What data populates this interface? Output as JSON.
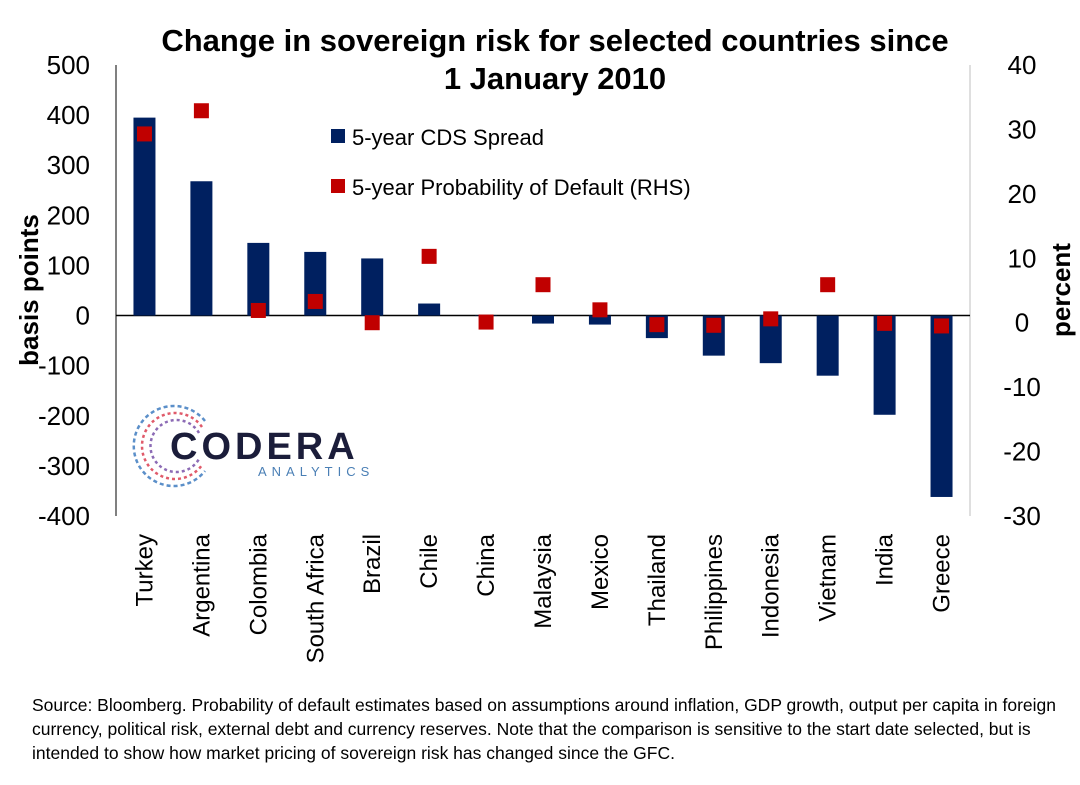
{
  "chart_data": {
    "type": "bar",
    "title": "Change in sovereign risk for selected countries since 1 January 2010",
    "categories": [
      "Turkey",
      "Argentina",
      "Colombia",
      "South Africa",
      "Brazil",
      "Chile",
      "China",
      "Malaysia",
      "Mexico",
      "Thailand",
      "Philippines",
      "Indonesia",
      "Vietnam",
      "India",
      "Greece"
    ],
    "series": [
      {
        "name": "5-year CDS Spread",
        "type": "bar",
        "axis": "left",
        "color": "#002060",
        "values": [
          395,
          268,
          145,
          127,
          114,
          24,
          0,
          -16,
          -18,
          -45,
          -80,
          -95,
          -120,
          -198,
          -362
        ]
      },
      {
        "name": "5-year Probability of Default (RHS)",
        "type": "scatter",
        "axis": "right",
        "color": "#c00000",
        "values": [
          29.3,
          32.9,
          1.9,
          3.3,
          0.0,
          10.3,
          0.1,
          5.9,
          2.0,
          -0.3,
          -0.4,
          0.6,
          5.9,
          -0.1,
          -0.5
        ]
      }
    ],
    "ylabel": "basis points",
    "ylabel_right": "percent",
    "ylim": [
      -400,
      500
    ],
    "ylim_right": [
      -30,
      40
    ],
    "yticks": [
      "500",
      "400",
      "300",
      "200",
      "100",
      "0",
      "-100",
      "-200",
      "-300",
      "-400"
    ],
    "yticks_right": [
      "40",
      "30",
      "20",
      "10",
      "0",
      "-10",
      "-20",
      "-30"
    ],
    "grid": false,
    "legend_position": "top-center"
  },
  "logo": {
    "name": "CODERA",
    "sub": "ANALYTICS"
  },
  "source_note": "Source: Bloomberg. Probability of default estimates based on assumptions around inflation, GDP growth,  output per capita in foreign currency, political risk, external debt and currency reserves. Note that the comparison is sensitive to the start date selected, but is intended to show how market pricing of sovereign risk has changed since the GFC."
}
